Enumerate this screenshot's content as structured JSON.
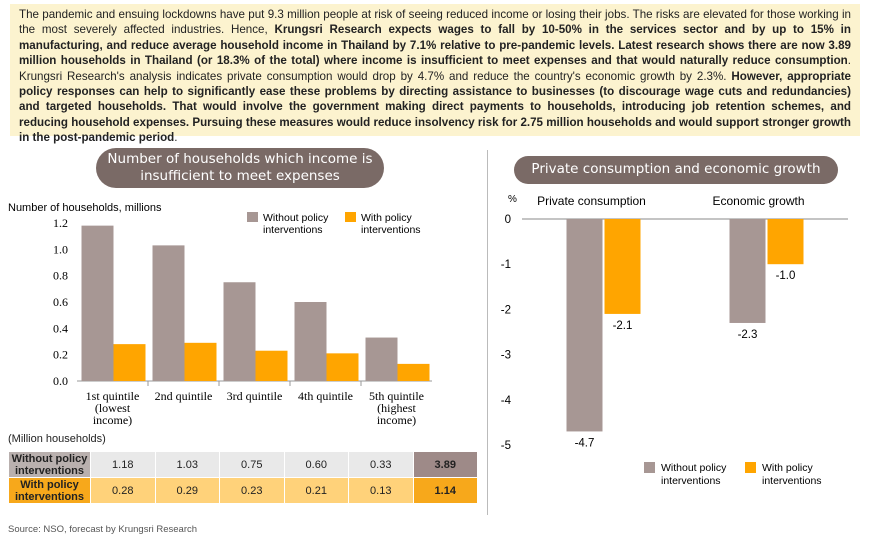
{
  "intro": {
    "s1": "The pandemic and ensuing lockdowns have put 9.3 million people at risk of seeing reduced income or losing their jobs. The risks are elevated for those working in the most severely affected industries. Hence, ",
    "s2": "Krungsri Research expects wages to fall by 10-50% in the services sector and by up to 15% in manufacturing, and reduce average household income in Thailand by 7.1% relative to pre-pandemic levels. Latest research shows there are now 3.89 million households in Thailand (or 18.3% of the total) where income is insufficient to meet expenses and that would naturally reduce consumption",
    "s3": ". Krungsri Research's analysis indicates private consumption would drop by 4.7% and reduce the country's economic growth by 2.3%. ",
    "s4": "However, appropriate policy responses can help to significantly ease these problems by directing assistance to businesses (to discourage wage cuts and redundancies) and targeted households. That would involve the government making direct payments to households, introducing job retention schemes, and reducing household expenses. Pursuing these measures would reduce insolvency risk for 2.75 million households and would support stronger growth in the post-pandemic period",
    "s5": "."
  },
  "left_title": "Number of households which income is insufficient to meet expenses",
  "right_title": "Private consumption and economic growth",
  "table": {
    "unit_label": "(Million households)",
    "row1_label": "Without policy interventions",
    "row2_label": "With policy interventions",
    "row1": [
      "1.18",
      "1.03",
      "0.75",
      "0.60",
      "0.33",
      "3.89"
    ],
    "row2": [
      "0.28",
      "0.29",
      "0.23",
      "0.21",
      "0.13",
      "1.14"
    ]
  },
  "source": "Source: NSO, forecast by Krungsri Research",
  "colors": {
    "without": "#a79794",
    "with": "#ffa500"
  },
  "chart_data": [
    {
      "type": "bar",
      "title": "Number of households which income is insufficient to meet expenses",
      "ylabel": "Number of households, millions",
      "ylim": [
        0,
        1.2
      ],
      "yticks": [
        "0.0",
        "0.2",
        "0.4",
        "0.6",
        "0.8",
        "1.0",
        "1.2"
      ],
      "categories": [
        [
          "1st quintile",
          "(lowest",
          "income)"
        ],
        [
          "2nd quintile"
        ],
        [
          "3rd quintile"
        ],
        [
          "4th quintile"
        ],
        [
          "5th quintile",
          "(highest",
          "income)"
        ]
      ],
      "series": [
        {
          "name": "Without policy interventions",
          "legend": [
            "Without policy",
            "interventions"
          ],
          "values": [
            1.18,
            1.03,
            0.75,
            0.6,
            0.33
          ]
        },
        {
          "name": "With policy interventions",
          "legend": [
            "With policy",
            "interventions"
          ],
          "values": [
            0.28,
            0.29,
            0.23,
            0.21,
            0.13
          ]
        }
      ]
    },
    {
      "type": "bar",
      "title": "Private consumption and economic growth",
      "ylabel": "%",
      "ylim": [
        -5,
        0
      ],
      "yticks": [
        "-5",
        "-4",
        "-3",
        "-2",
        "-1",
        "0"
      ],
      "categories": [
        "Private consumption",
        "Economic growth"
      ],
      "series": [
        {
          "name": "Without policy interventions",
          "legend": [
            "Without policy",
            "interventions"
          ],
          "values": [
            -4.7,
            -2.3
          ],
          "labels": [
            "-4.7",
            "-2.3"
          ]
        },
        {
          "name": "With policy interventions",
          "legend": [
            "With policy",
            "interventions"
          ],
          "values": [
            -2.1,
            -1.0
          ],
          "labels": [
            "-2.1",
            "-1.0"
          ]
        }
      ]
    }
  ]
}
